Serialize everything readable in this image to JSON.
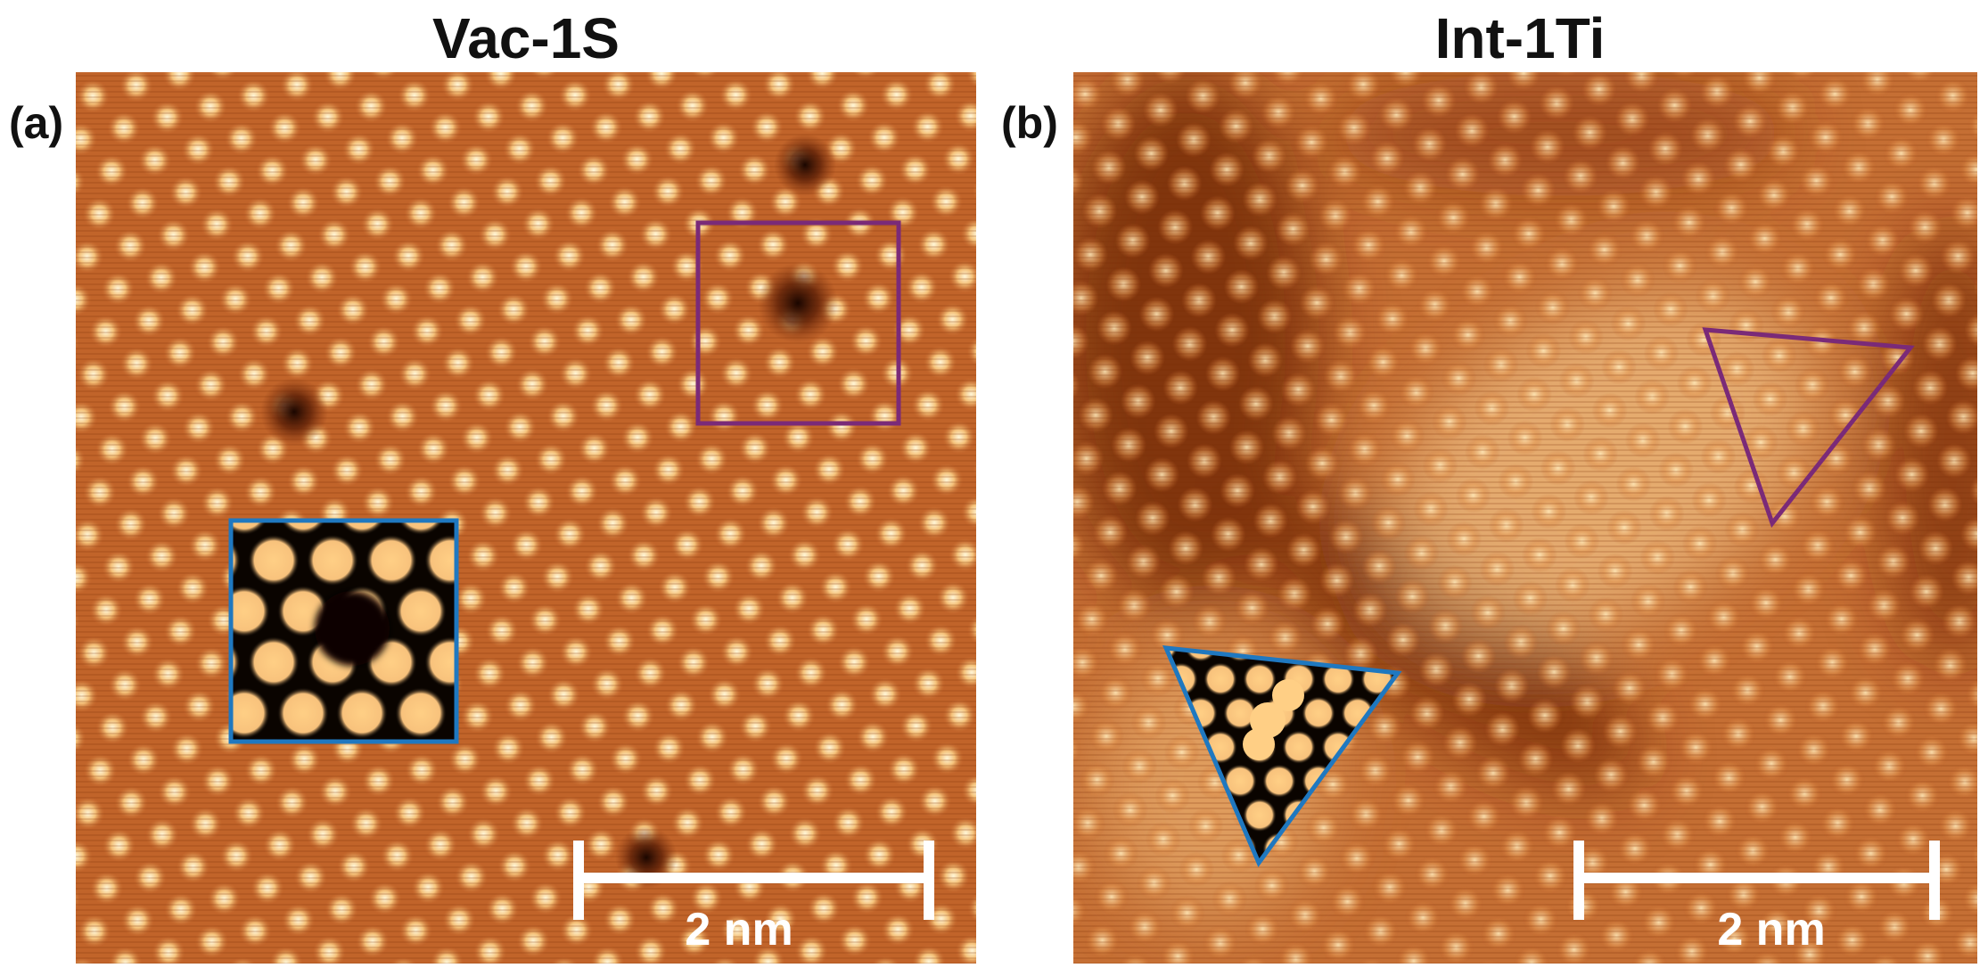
{
  "panels": [
    {
      "label": "(a)",
      "title": "Vac-1S",
      "scale_bar": "2 nm"
    },
    {
      "label": "(b)",
      "title": "Int-1Ti",
      "scale_bar": "2 nm"
    }
  ]
}
